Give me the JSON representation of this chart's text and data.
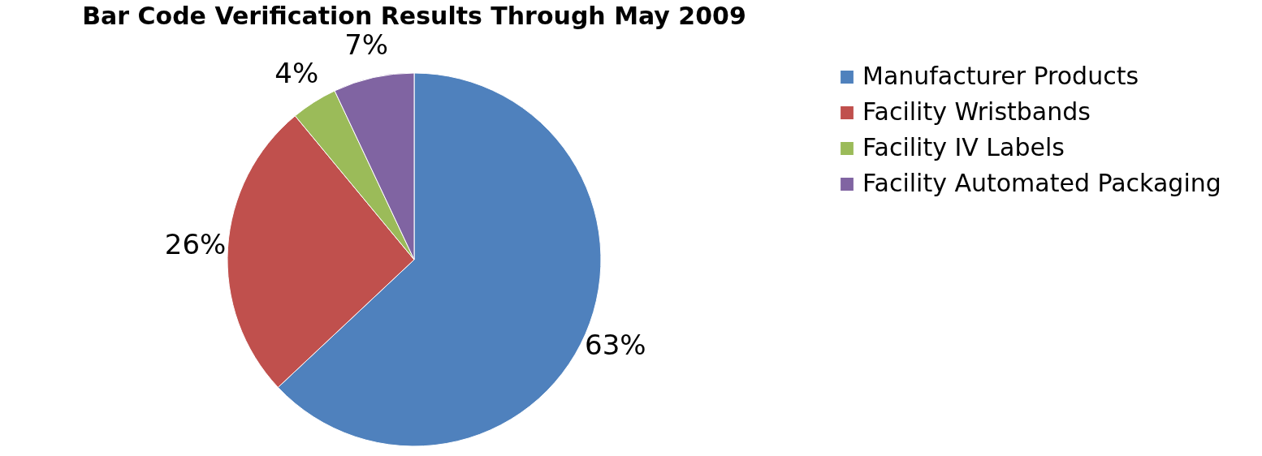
{
  "chart_data": {
    "type": "pie",
    "title": "Bar Code Verification Results Through May 2009",
    "categories": [
      "Manufacturer Products",
      "Facility Wristbands",
      "Facility IV Labels",
      "Facility Automated Packaging"
    ],
    "values": [
      63,
      26,
      4,
      7
    ],
    "colors": [
      "#4f81bd",
      "#c0504d",
      "#9bbb59",
      "#8064a2"
    ],
    "value_labels": [
      "63%",
      "26%",
      "4%",
      "7%"
    ],
    "legend": "right"
  }
}
